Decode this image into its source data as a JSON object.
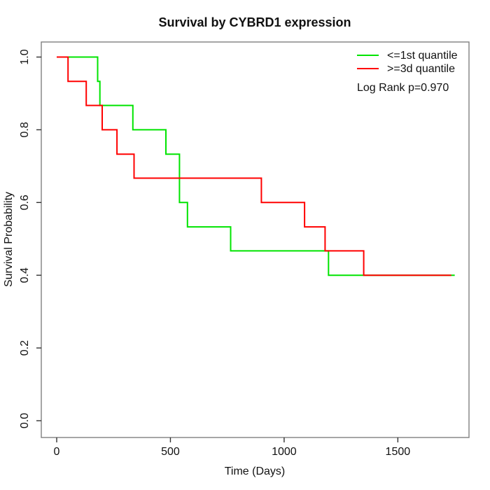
{
  "window": {
    "background": "#ffffff",
    "box_color": "#7f7f7f",
    "tick_color": "#333333",
    "text_color": "#111111"
  },
  "chart_data": {
    "type": "line",
    "subtype": "kaplan-meier-step",
    "title": "Survival by CYBRD1 expression",
    "grid": false,
    "legend_position": "top-right",
    "annotation": "Log Rank p=0.970",
    "x_axis": {
      "label": "Time (Days)",
      "range": [
        0,
        1800
      ],
      "ticks": [
        {
          "v": 0,
          "label": "0"
        },
        {
          "v": 500,
          "label": "500"
        },
        {
          "v": 1000,
          "label": "1000"
        },
        {
          "v": 1500,
          "label": "1500"
        }
      ]
    },
    "y_axis": {
      "label": "Survival Probability",
      "range": [
        0.0,
        1.0
      ],
      "ticks": [
        {
          "v": 0.0,
          "label": "0.0"
        },
        {
          "v": 0.2,
          "label": "0.2"
        },
        {
          "v": 0.4,
          "label": "0.4"
        },
        {
          "v": 0.6,
          "label": "0.6"
        },
        {
          "v": 0.8,
          "label": "0.8"
        },
        {
          "v": 1.0,
          "label": "1.0"
        }
      ]
    },
    "series": [
      {
        "name": "<=1st quantile",
        "color": "#00E400",
        "times": [
          0,
          180,
          190,
          335,
          480,
          540,
          575,
          765,
          1195
        ],
        "surv": [
          1.0,
          0.933,
          0.867,
          0.8,
          0.733,
          0.6,
          0.533,
          0.467,
          0.4
        ],
        "end_time": 1750
      },
      {
        "name": ">=3d quantile",
        "color": "#FF0000",
        "times": [
          0,
          50,
          130,
          200,
          265,
          340,
          900,
          1090,
          1180,
          1350
        ],
        "surv": [
          1.0,
          0.933,
          0.867,
          0.8,
          0.733,
          0.667,
          0.6,
          0.533,
          0.467,
          0.4
        ],
        "end_time": 1735
      }
    ]
  }
}
